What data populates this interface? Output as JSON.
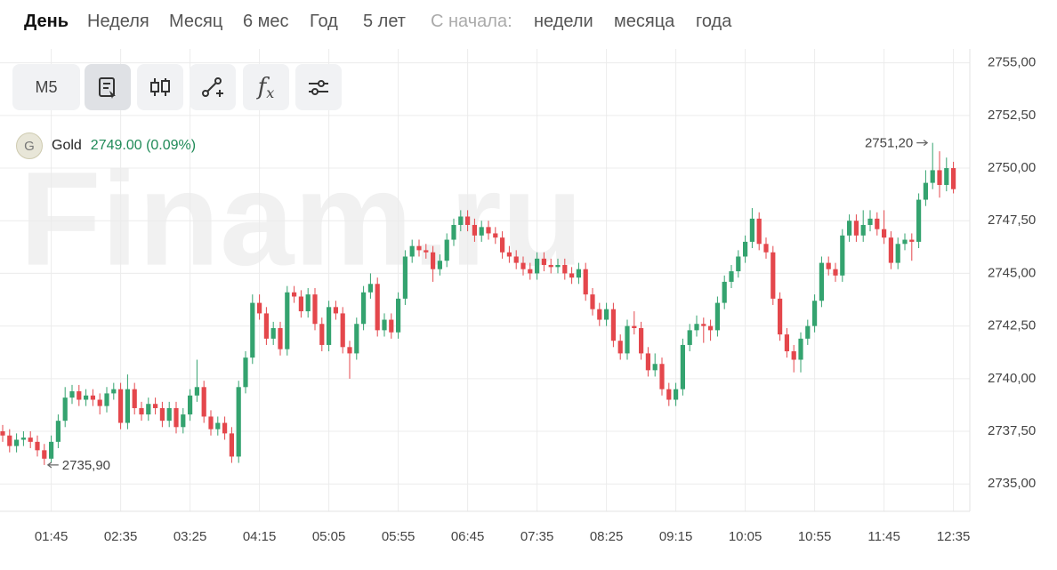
{
  "tabs": [
    "День",
    "Неделя",
    "Месяц",
    "6 мес",
    "Год",
    "5 лет"
  ],
  "since_label": "С начала:",
  "since_tabs": [
    "недели",
    "месяца",
    "года"
  ],
  "toolbar": {
    "interval": "M5",
    "function_symbol": "f",
    "function_sub": "x"
  },
  "legend": {
    "badge": "G",
    "quote": "2749.00 (0.09%)"
  },
  "watermark": "Finam.ru",
  "chart_data": {
    "type": "candlestick",
    "categories": [
      null,
      null,
      null,
      null,
      null,
      null,
      null,
      "01:45",
      null,
      null,
      null,
      null,
      null,
      null,
      null,
      null,
      null,
      "02:35",
      null,
      null,
      null,
      null,
      null,
      null,
      null,
      null,
      null,
      "03:25",
      null,
      null,
      null,
      null,
      null,
      null,
      null,
      null,
      null,
      "04:15",
      null,
      null,
      null,
      null,
      null,
      null,
      null,
      null,
      null,
      "05:05",
      null,
      null,
      null,
      null,
      null,
      null,
      null,
      null,
      null,
      "05:55",
      null,
      null,
      null,
      null,
      null,
      null,
      null,
      null,
      null,
      "06:45",
      null,
      null,
      null,
      null,
      null,
      null,
      null,
      null,
      null,
      "07:35",
      null,
      null,
      null,
      null,
      null,
      null,
      null,
      null,
      null,
      "08:25",
      null,
      null,
      null,
      null,
      null,
      null,
      null,
      null,
      null,
      "09:15",
      null,
      null,
      null,
      null,
      null,
      null,
      null,
      null,
      null,
      "10:05",
      null,
      null,
      null,
      null,
      null,
      null,
      null,
      null,
      null,
      "10:55",
      null,
      null,
      null,
      null,
      null,
      null,
      null,
      null,
      null,
      "11:45",
      null,
      null,
      null,
      null,
      null,
      null,
      null,
      null,
      null,
      "12:35"
    ],
    "series": [
      {
        "name": "Gold",
        "up_color": "#34a36f",
        "down_color": "#e4474c",
        "open": [
          2737.5,
          2737.3,
          2736.8,
          2737.1,
          2737.2,
          2737.0,
          2736.6,
          2736.2,
          2737.0,
          2738.0,
          2739.1,
          2739.4,
          2739.0,
          2739.2,
          2739.0,
          2738.7,
          2739.3,
          2739.5,
          2737.9,
          2739.5,
          2738.6,
          2738.3,
          2738.8,
          2738.6,
          2738.0,
          2738.6,
          2737.7,
          2738.3,
          2739.2,
          2739.6,
          2738.2,
          2737.6,
          2737.9,
          2737.4,
          2736.3,
          2739.6,
          2741.0,
          2743.6,
          2743.1,
          2741.9,
          2742.4,
          2741.4,
          2744.1,
          2743.9,
          2743.2,
          2744.0,
          2742.6,
          2741.6,
          2743.4,
          2743.1,
          2741.5,
          2741.2,
          2742.6,
          2744.1,
          2744.5,
          2742.3,
          2742.8,
          2742.2,
          2743.8,
          2745.8,
          2746.3,
          2746.1,
          2746.0,
          2745.2,
          2745.6,
          2746.6,
          2747.3,
          2747.7,
          2747.3,
          2746.8,
          2747.2,
          2746.9,
          2746.7,
          2746.0,
          2745.8,
          2745.5,
          2745.2,
          2745.0,
          2745.7,
          2745.4,
          2745.3,
          2745.4,
          2745.0,
          2744.8,
          2745.2,
          2744.0,
          2743.3,
          2742.8,
          2743.3,
          2741.8,
          2741.2,
          2742.5,
          2742.4,
          2741.2,
          2740.4,
          2740.7,
          2739.5,
          2739.0,
          2739.5,
          2741.6,
          2742.3,
          2742.6,
          2742.5,
          2742.3,
          2743.6,
          2744.6,
          2745.1,
          2745.8,
          2746.5,
          2747.6,
          2746.4,
          2746.0,
          2743.8,
          2742.1,
          2741.3,
          2740.9,
          2741.9,
          2742.5,
          2743.7,
          2745.5,
          2745.2,
          2744.9,
          2746.8,
          2747.5,
          2746.8,
          2747.3,
          2747.6,
          2747.1,
          2746.7,
          2745.5,
          2746.4,
          2746.6,
          2746.5,
          2748.5,
          2749.3,
          2749.9,
          2749.2,
          2750.0
        ],
        "high": [
          2737.8,
          2737.6,
          2737.4,
          2737.5,
          2737.5,
          2737.3,
          2736.9,
          2737.3,
          2738.3,
          2739.6,
          2739.7,
          2739.7,
          2739.5,
          2739.5,
          2739.3,
          2739.6,
          2739.8,
          2739.8,
          2740.2,
          2739.8,
          2738.9,
          2739.1,
          2739.1,
          2738.9,
          2738.9,
          2738.9,
          2738.6,
          2739.5,
          2740.9,
          2739.9,
          2738.5,
          2738.2,
          2738.2,
          2737.7,
          2739.9,
          2741.3,
          2744.0,
          2744.0,
          2743.4,
          2742.7,
          2742.7,
          2744.4,
          2744.4,
          2744.2,
          2744.3,
          2744.3,
          2742.9,
          2743.7,
          2743.7,
          2743.4,
          2741.8,
          2742.9,
          2744.4,
          2745.0,
          2744.8,
          2743.1,
          2743.1,
          2744.1,
          2746.1,
          2746.6,
          2746.6,
          2746.4,
          2746.3,
          2745.9,
          2746.9,
          2747.6,
          2748.0,
          2748.0,
          2747.6,
          2747.5,
          2747.5,
          2747.2,
          2747.0,
          2746.3,
          2746.1,
          2745.8,
          2745.5,
          2746.0,
          2746.0,
          2745.7,
          2745.7,
          2745.7,
          2745.3,
          2745.5,
          2745.5,
          2744.3,
          2743.6,
          2743.6,
          2743.6,
          2742.1,
          2742.8,
          2743.2,
          2742.7,
          2741.5,
          2741.2,
          2741.0,
          2739.8,
          2739.8,
          2741.9,
          2742.6,
          2743.0,
          2742.9,
          2742.8,
          2743.9,
          2744.9,
          2745.4,
          2746.1,
          2746.8,
          2748.1,
          2747.9,
          2746.7,
          2746.3,
          2744.1,
          2742.4,
          2741.6,
          2742.2,
          2742.8,
          2744.0,
          2745.8,
          2745.8,
          2745.5,
          2747.1,
          2747.8,
          2747.8,
          2748.0,
          2748.0,
          2747.9,
          2748.0,
          2747.0,
          2746.7,
          2746.9,
          2746.9,
          2748.8,
          2749.9,
          2751.2,
          2750.8,
          2750.5,
          2750.3
        ],
        "low": [
          2737.0,
          2736.5,
          2736.5,
          2736.8,
          2736.7,
          2736.3,
          2735.9,
          2736.0,
          2736.7,
          2737.7,
          2738.8,
          2738.7,
          2738.7,
          2738.7,
          2738.3,
          2738.4,
          2739.0,
          2737.6,
          2737.6,
          2738.3,
          2738.0,
          2738.0,
          2738.3,
          2737.7,
          2737.7,
          2737.4,
          2737.4,
          2738.0,
          2738.9,
          2737.9,
          2737.3,
          2737.3,
          2737.1,
          2736.0,
          2736.0,
          2739.3,
          2740.7,
          2742.8,
          2741.6,
          2741.6,
          2741.1,
          2741.1,
          2743.6,
          2742.9,
          2742.9,
          2742.3,
          2741.3,
          2741.3,
          2742.8,
          2741.2,
          2740.0,
          2740.9,
          2742.3,
          2743.8,
          2742.0,
          2742.0,
          2741.9,
          2741.9,
          2743.5,
          2745.5,
          2745.8,
          2745.7,
          2744.6,
          2744.9,
          2745.3,
          2746.3,
          2747.0,
          2747.0,
          2746.5,
          2746.5,
          2746.6,
          2746.4,
          2745.7,
          2745.5,
          2745.2,
          2744.9,
          2744.7,
          2744.7,
          2745.1,
          2745.0,
          2745.0,
          2744.7,
          2744.5,
          2744.5,
          2743.7,
          2743.0,
          2742.5,
          2742.5,
          2741.5,
          2740.9,
          2740.9,
          2742.1,
          2740.9,
          2740.1,
          2740.1,
          2739.2,
          2738.7,
          2738.7,
          2739.2,
          2741.3,
          2742.0,
          2741.7,
          2741.8,
          2742.0,
          2743.3,
          2744.3,
          2744.8,
          2745.5,
          2746.2,
          2746.1,
          2745.7,
          2743.5,
          2741.8,
          2741.0,
          2740.3,
          2740.3,
          2741.6,
          2742.2,
          2743.4,
          2744.9,
          2744.6,
          2744.6,
          2746.5,
          2746.5,
          2746.5,
          2747.0,
          2746.8,
          2746.4,
          2745.2,
          2745.2,
          2746.1,
          2745.6,
          2746.2,
          2748.2,
          2749.0,
          2748.6,
          2748.9,
          2748.8
        ],
        "close": [
          2737.3,
          2736.8,
          2737.1,
          2737.2,
          2737.0,
          2736.6,
          2736.2,
          2737.0,
          2738.0,
          2739.1,
          2739.4,
          2739.0,
          2739.2,
          2739.0,
          2738.7,
          2739.3,
          2739.5,
          2737.9,
          2739.5,
          2738.6,
          2738.3,
          2738.8,
          2738.6,
          2738.0,
          2738.6,
          2737.7,
          2738.3,
          2739.2,
          2739.6,
          2738.2,
          2737.6,
          2737.9,
          2737.4,
          2736.3,
          2739.6,
          2741.0,
          2743.6,
          2743.1,
          2741.9,
          2742.4,
          2741.4,
          2744.1,
          2743.9,
          2743.2,
          2744.0,
          2742.6,
          2741.6,
          2743.4,
          2743.1,
          2741.5,
          2741.2,
          2742.6,
          2744.1,
          2744.5,
          2742.3,
          2742.8,
          2742.2,
          2743.8,
          2745.8,
          2746.3,
          2746.1,
          2746.0,
          2745.2,
          2745.6,
          2746.6,
          2747.3,
          2747.7,
          2747.3,
          2746.8,
          2747.2,
          2746.9,
          2746.7,
          2746.0,
          2745.8,
          2745.5,
          2745.2,
          2745.0,
          2745.7,
          2745.4,
          2745.3,
          2745.4,
          2745.0,
          2744.8,
          2745.2,
          2744.0,
          2743.3,
          2742.8,
          2743.3,
          2741.8,
          2741.2,
          2742.5,
          2742.4,
          2741.2,
          2740.4,
          2740.7,
          2739.5,
          2739.0,
          2739.5,
          2741.6,
          2742.3,
          2742.6,
          2742.5,
          2742.3,
          2743.6,
          2744.6,
          2745.1,
          2745.8,
          2746.5,
          2747.6,
          2746.4,
          2746.0,
          2743.8,
          2742.1,
          2741.3,
          2740.9,
          2741.9,
          2742.5,
          2743.7,
          2745.5,
          2745.2,
          2744.9,
          2746.8,
          2747.5,
          2746.8,
          2747.3,
          2747.6,
          2747.1,
          2746.7,
          2745.5,
          2746.4,
          2746.6,
          2746.5,
          2748.5,
          2749.3,
          2749.9,
          2749.2,
          2750.0,
          2749.0
        ]
      }
    ],
    "ylim": [
      2733.7,
      2755.45
    ],
    "yticks": [
      {
        "value": 2735,
        "label": "2735,00"
      },
      {
        "value": 2737.5,
        "label": "2737,50"
      },
      {
        "value": 2740,
        "label": "2740,00"
      },
      {
        "value": 2742.5,
        "label": "2742,50"
      },
      {
        "value": 2745,
        "label": "2745,00"
      },
      {
        "value": 2747.5,
        "label": "2747,50"
      },
      {
        "value": 2750,
        "label": "2750,00"
      },
      {
        "value": 2752.5,
        "label": "2752,50"
      },
      {
        "value": 2755,
        "label": "2755,00"
      }
    ],
    "grid": true,
    "annotations": [
      {
        "value": 2751.2,
        "label": "2751,20"
      },
      {
        "value": 2735.9,
        "label": "2735,90"
      }
    ]
  }
}
